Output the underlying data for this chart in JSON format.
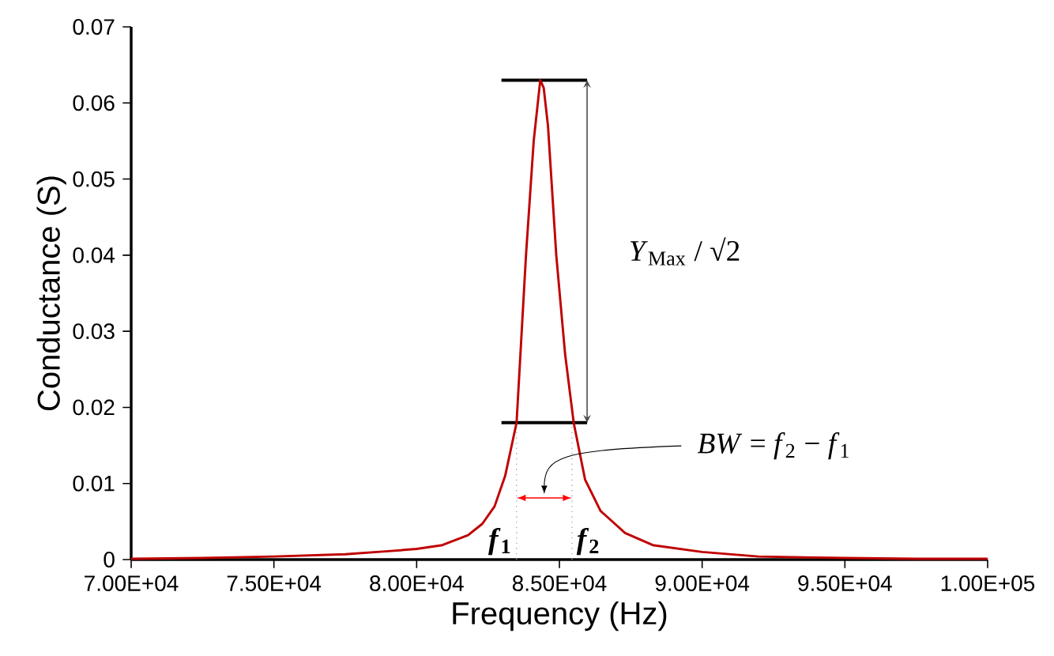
{
  "chart_data": {
    "type": "line",
    "xlabel": "Frequency (Hz)",
    "ylabel": "Conductance (S)",
    "x": [
      70000,
      72500,
      75000,
      77500,
      79000,
      80000,
      80900,
      81800,
      82300,
      82730,
      83100,
      83500,
      83830,
      84100,
      84330,
      84450,
      84600,
      84890,
      85200,
      85500,
      85900,
      86440,
      87300,
      88270,
      90000,
      91970,
      95000,
      97500,
      100000
    ],
    "series": [
      {
        "color": "#c00000",
        "values": [
          0.0001,
          0.0002,
          0.0004,
          0.0007,
          0.0011,
          0.0014,
          0.0019,
          0.0032,
          0.0047,
          0.007,
          0.011,
          0.018,
          0.04,
          0.055,
          0.063,
          0.062,
          0.057,
          0.04,
          0.027,
          0.018,
          0.0105,
          0.0064,
          0.0035,
          0.0019,
          0.001,
          0.0004,
          0.0002,
          0.0001,
          0.0001
        ]
      }
    ],
    "xlim": [
      70000,
      100000
    ],
    "ylim": [
      0,
      0.07
    ],
    "xticks": [
      {
        "value": 70000,
        "label": "7.00E+04"
      },
      {
        "value": 75000,
        "label": "7.50E+04"
      },
      {
        "value": 80000,
        "label": "8.00E+04"
      },
      {
        "value": 85000,
        "label": "8.50E+04"
      },
      {
        "value": 90000,
        "label": "9.00E+04"
      },
      {
        "value": 95000,
        "label": "9.50E+04"
      },
      {
        "value": 100000,
        "label": "1.00E+05"
      }
    ],
    "yticks": [
      0,
      0.01,
      0.02,
      0.03,
      0.04,
      0.05,
      0.06,
      0.07
    ],
    "ref_lines": [
      {
        "axis": "y",
        "value": 0.063,
        "color": "#000000"
      },
      {
        "axis": "y",
        "value": 0.018,
        "color": "#000000"
      },
      {
        "axis": "x",
        "value": 83500,
        "color": "#a6a6a6",
        "line_style": "dotted"
      },
      {
        "axis": "x",
        "value": 85440,
        "color": "#a6a6a6",
        "line_style": "dotted"
      }
    ],
    "annotations": [
      "*Y*$_{Max}$ / √2",
      "*BW* = *f*$_{2}$ − *f*$_{1}$",
      {
        "text": "*f*$_{1}$",
        "x": 83500,
        "y": 0
      },
      {
        "text": "*f*$_{2}$",
        "x": 85440,
        "y": 0
      }
    ],
    "grid": false,
    "marker": "none",
    "line_style": "solid"
  }
}
